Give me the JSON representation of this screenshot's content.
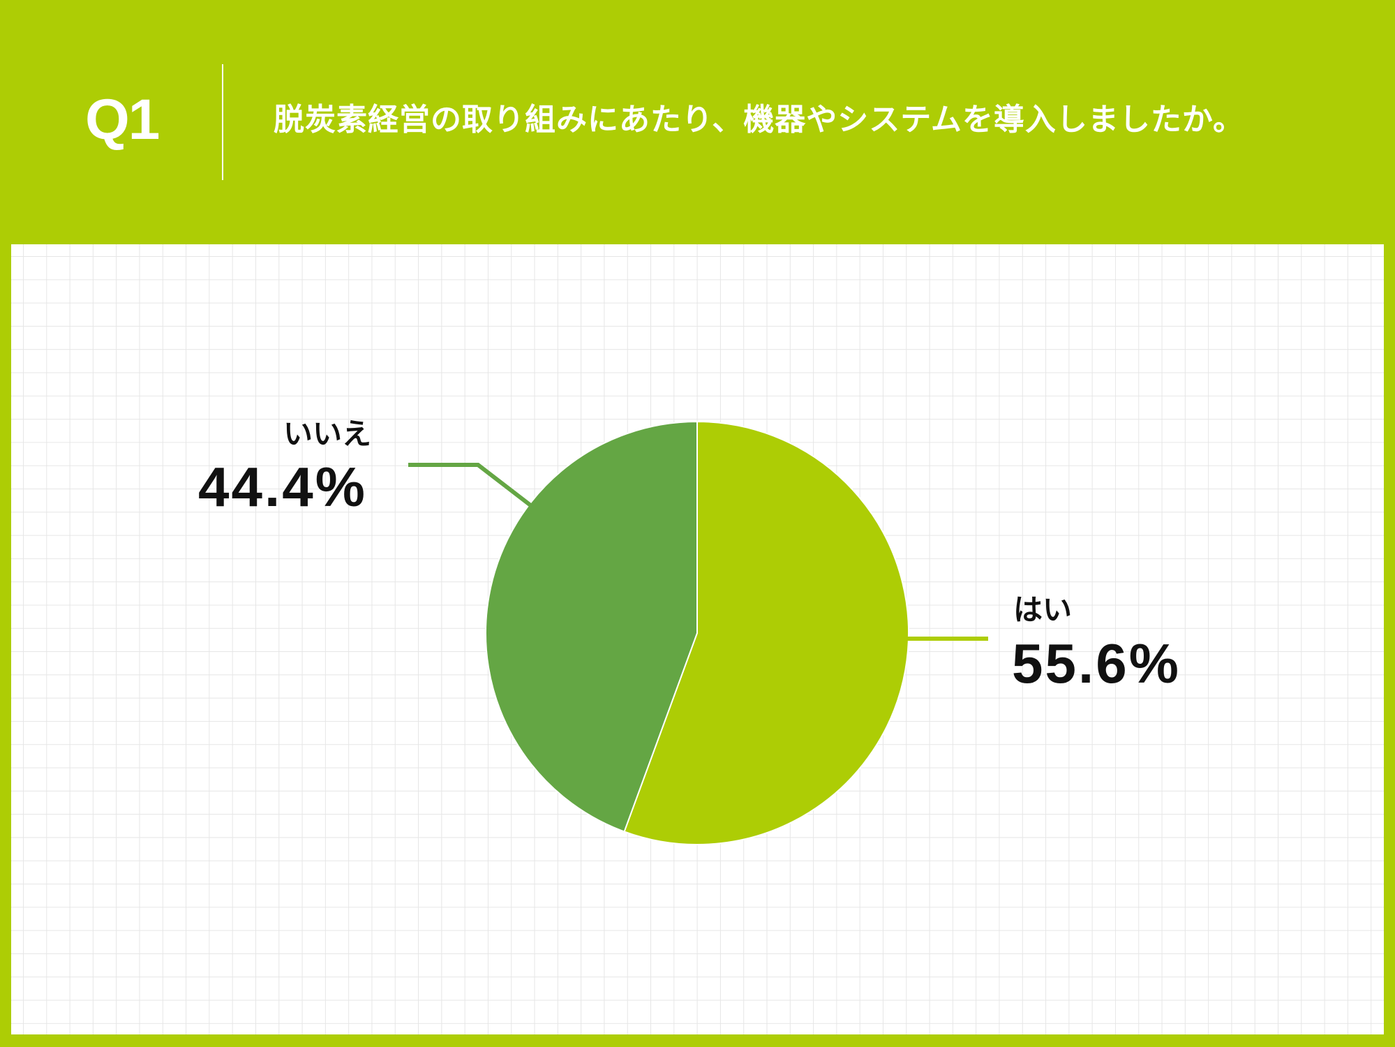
{
  "header": {
    "question_number": "Q1",
    "question_text": "脱炭素経営の取り組みにあたり、機器やシステムを導入しましたか。"
  },
  "colors": {
    "background": "#adcd05",
    "yes_slice": "#adcd05",
    "no_slice": "#64a644",
    "grid": "#e6e6e6",
    "label_text": "#111111"
  },
  "labels": {
    "yes_name": "はい",
    "yes_pct": "55.6%",
    "no_name": "いいえ",
    "no_pct": "44.4%"
  },
  "chart_data": {
    "type": "pie",
    "title": "脱炭素経営の取り組みにあたり、機器やシステムを導入しましたか。",
    "categories": [
      "はい",
      "いいえ"
    ],
    "values": [
      55.6,
      44.4
    ],
    "colors": [
      "#adcd05",
      "#64a644"
    ],
    "start_angle": "12 o'clock, clockwise",
    "legend": "none (direct labels with leader lines)",
    "grid": "background graph-paper grid"
  }
}
